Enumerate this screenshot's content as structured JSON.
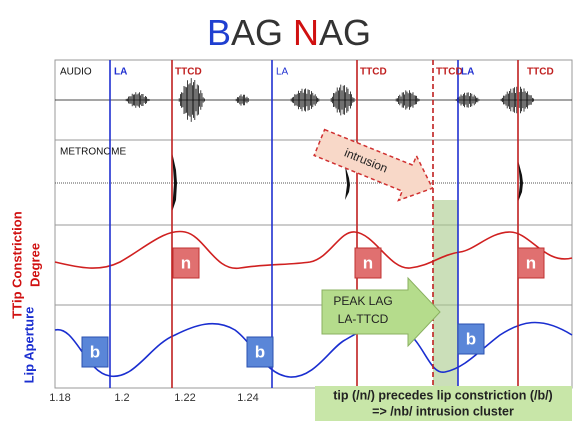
{
  "title": [
    "B",
    "AG",
    "N",
    "AG"
  ],
  "panels": [
    "AUDIO",
    "METRONOME"
  ],
  "y_labels": {
    "ttcd": [
      "TTip Constriction",
      "Degree"
    ],
    "lip": "Lip Aperture"
  },
  "markers": [
    "LA",
    "TTCD",
    "LA",
    "TTCD",
    "TTCD",
    "LA",
    "TTCD"
  ],
  "gesture_boxes": [
    "n",
    "n",
    "n",
    "b",
    "b",
    "b"
  ],
  "intrusion_callout": "intrusion",
  "peak_lag_callout": [
    "PEAK LAG",
    "LA-TTCD"
  ],
  "note": [
    "tip (/n/) precedes lip constriction (/b/)",
    "=> /nb/ intrusion cluster"
  ],
  "x_ticks": [
    "1.18",
    "1.2",
    "1.22",
    "1.24"
  ]
}
